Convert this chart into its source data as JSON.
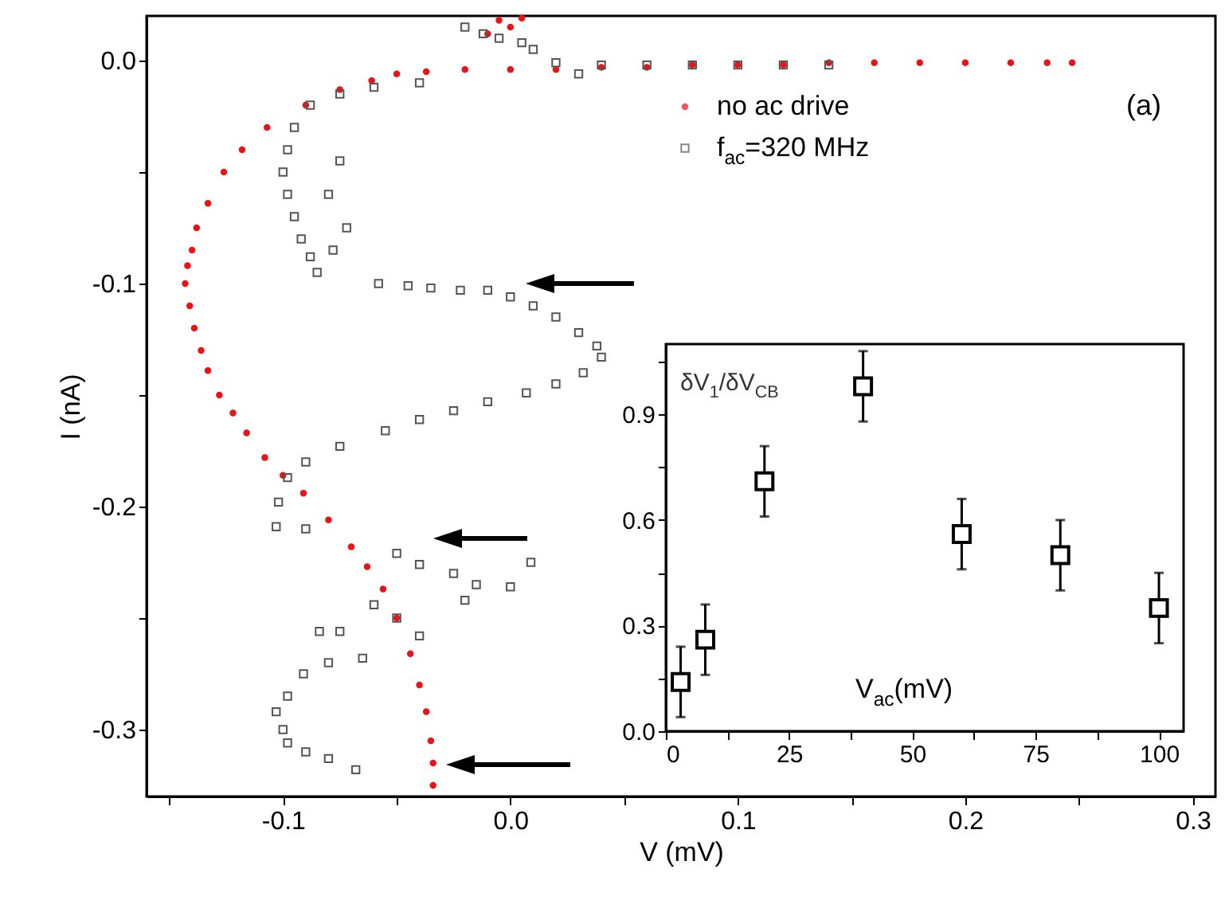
{
  "chart_data": [
    {
      "type": "scatter",
      "xlabel": "V (mV)",
      "ylabel": "I (nA)",
      "annotations": [
        "(a)"
      ],
      "legend": "top right",
      "xlim": [
        -0.16,
        0.31
      ],
      "ylim": [
        -0.33,
        0.02
      ],
      "xticks": [
        {
          "value": -0.15,
          "label": null
        },
        -0.1,
        {
          "value": -0.05,
          "label": null
        },
        {
          "value": 0,
          "label": "0.0"
        },
        {
          "value": 0.05,
          "label": null
        },
        0.1,
        {
          "value": 0.15,
          "label": null
        },
        0.2,
        {
          "value": 0.25,
          "label": null
        },
        0.3
      ],
      "yticks": [
        {
          "value": 0,
          "label": "0.0"
        },
        {
          "value": -0.05,
          "label": null
        },
        -0.1,
        {
          "value": -0.15,
          "label": null
        },
        -0.2,
        {
          "value": -0.25,
          "label": null
        },
        -0.3
      ],
      "series": [
        {
          "name": "no ac drive",
          "color": "#e8141a",
          "marker": "circle",
          "x": [
            -0.005,
            0.0,
            0.005,
            -0.01,
            0.247,
            0.236,
            0.22,
            0.2,
            0.18,
            0.16,
            0.14,
            0.12,
            0.1,
            0.08,
            0.06,
            0.04,
            0.02,
            0.0,
            -0.02,
            -0.037,
            -0.05,
            -0.061,
            -0.075,
            -0.09,
            -0.107,
            -0.118,
            -0.126,
            -0.133,
            -0.138,
            -0.14,
            -0.142,
            -0.143,
            -0.141,
            -0.139,
            -0.136,
            -0.133,
            -0.128,
            -0.122,
            -0.116,
            -0.108,
            -0.1,
            -0.091,
            -0.08,
            -0.07,
            -0.063,
            -0.056,
            -0.05,
            -0.044,
            -0.04,
            -0.037,
            -0.035,
            -0.034,
            -0.034
          ],
          "values": [
            0.018,
            0.015,
            0.019,
            0.012,
            -0.001,
            -0.001,
            -0.001,
            -0.001,
            -0.001,
            -0.001,
            -0.001,
            -0.002,
            -0.002,
            -0.002,
            -0.003,
            -0.003,
            -0.004,
            -0.004,
            -0.004,
            -0.005,
            -0.006,
            -0.009,
            -0.013,
            -0.02,
            -0.03,
            -0.04,
            -0.05,
            -0.064,
            -0.075,
            -0.085,
            -0.092,
            -0.1,
            -0.11,
            -0.12,
            -0.13,
            -0.139,
            -0.15,
            -0.158,
            -0.167,
            -0.178,
            -0.186,
            -0.194,
            -0.206,
            -0.218,
            -0.227,
            -0.237,
            -0.25,
            -0.266,
            -0.28,
            -0.292,
            -0.305,
            -0.315,
            -0.325
          ]
        },
        {
          "name": "f$_{ac}$=320 MHz",
          "color": "#555555",
          "marker": "square",
          "x": [
            -0.02,
            -0.012,
            -0.005,
            0.005,
            0.01,
            0.02,
            0.04,
            0.06,
            0.08,
            0.1,
            0.12,
            0.14,
            0.03,
            -0.04,
            -0.06,
            -0.075,
            -0.088,
            -0.095,
            -0.098,
            -0.1,
            -0.098,
            -0.095,
            -0.092,
            -0.088,
            -0.085,
            -0.08,
            -0.075,
            -0.072,
            -0.078,
            -0.058,
            -0.045,
            -0.035,
            -0.022,
            -0.01,
            0.0,
            0.01,
            0.02,
            0.03,
            0.038,
            0.04,
            0.032,
            0.02,
            0.007,
            -0.01,
            -0.025,
            -0.04,
            -0.055,
            -0.075,
            -0.09,
            -0.098,
            -0.102,
            -0.103,
            -0.09,
            -0.05,
            -0.04,
            -0.025,
            -0.015,
            0.0,
            0.009,
            -0.02,
            -0.06,
            -0.05,
            -0.04,
            -0.084,
            -0.075,
            -0.065,
            -0.08,
            -0.091,
            -0.098,
            -0.103,
            -0.1,
            -0.098,
            -0.09,
            -0.08,
            -0.068
          ],
          "values": [
            0.015,
            0.012,
            0.01,
            0.008,
            0.005,
            -0.001,
            -0.002,
            -0.002,
            -0.002,
            -0.002,
            -0.002,
            -0.002,
            -0.006,
            -0.01,
            -0.012,
            -0.015,
            -0.02,
            -0.03,
            -0.04,
            -0.05,
            -0.06,
            -0.07,
            -0.08,
            -0.088,
            -0.095,
            -0.06,
            -0.045,
            -0.075,
            -0.085,
            -0.1,
            -0.101,
            -0.102,
            -0.103,
            -0.103,
            -0.106,
            -0.11,
            -0.115,
            -0.122,
            -0.128,
            -0.133,
            -0.14,
            -0.145,
            -0.149,
            -0.153,
            -0.157,
            -0.161,
            -0.166,
            -0.173,
            -0.18,
            -0.187,
            -0.198,
            -0.209,
            -0.21,
            -0.221,
            -0.226,
            -0.23,
            -0.235,
            -0.236,
            -0.225,
            -0.242,
            -0.244,
            -0.25,
            -0.258,
            -0.256,
            -0.256,
            -0.268,
            -0.27,
            -0.275,
            -0.285,
            -0.292,
            -0.3,
            -0.306,
            -0.31,
            -0.313,
            -0.318
          ]
        }
      ]
    },
    {
      "type": "scatter",
      "xlabel": "V$_{ac}$(mV)",
      "ylabel": "δV$_{1}$/δV$_{CB}$",
      "marker": "square",
      "color": "#000000",
      "xlim": [
        0,
        105
      ],
      "ylim": [
        0,
        1.1
      ],
      "xticks": [
        0,
        {
          "value": 12.5,
          "label": null
        },
        25,
        {
          "value": 37.5,
          "label": null
        },
        50,
        {
          "value": 62.5,
          "label": null
        },
        75,
        {
          "value": 87.5,
          "label": null
        },
        100
      ],
      "yticks": [
        {
          "value": 0,
          "label": "0.0"
        },
        {
          "value": 0.15,
          "label": null
        },
        0.3,
        {
          "value": 0.45,
          "label": null
        },
        0.6,
        {
          "value": 0.75,
          "label": null
        },
        0.9,
        {
          "value": 1.05,
          "label": null
        }
      ],
      "x": [
        3,
        8,
        20,
        40,
        60,
        80,
        100
      ],
      "values": [
        0.14,
        0.26,
        0.71,
        0.98,
        0.56,
        0.5,
        0.35
      ],
      "errors": [
        0.1,
        0.1,
        0.1,
        0.1,
        0.1,
        0.1,
        0.1
      ]
    }
  ]
}
